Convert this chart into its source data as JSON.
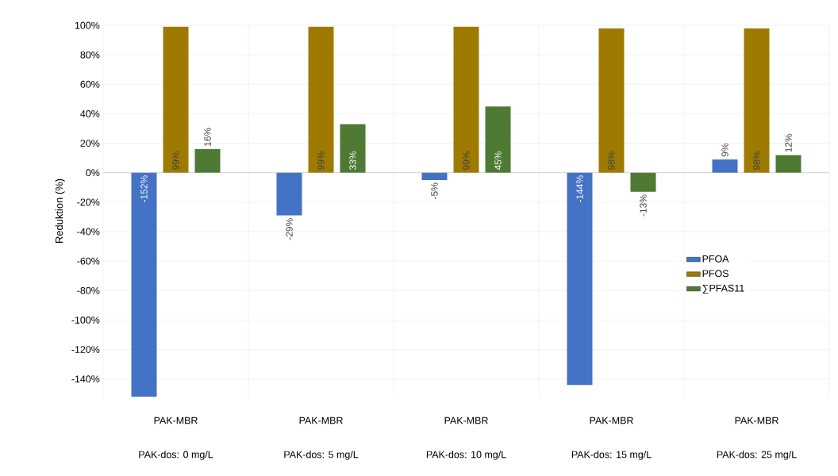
{
  "chart_data": {
    "type": "bar",
    "ylabel": "Reduktion (%)",
    "categories": [
      "PAK-dos: 0 mg/L",
      "PAK-dos: 5 mg/L",
      "PAK-dos: 10 mg/L",
      "PAK-dos: 15 mg/L",
      "PAK-dos: 25 mg/L"
    ],
    "annotations": [
      "PAK-MBR",
      "PAK-MBR",
      "PAK-MBR",
      "PAK-MBR",
      "PAK-MBR"
    ],
    "series": [
      {
        "name": "PFOA",
        "color": "#4472c4",
        "values": [
          -152,
          -29,
          -5,
          -144,
          9
        ],
        "value_labels": [
          "-152%",
          "-29%",
          "-5%",
          "-144%",
          "9%"
        ]
      },
      {
        "name": "PFOS",
        "color": "#9e7b00",
        "values": [
          99,
          99,
          99,
          98,
          98
        ],
        "value_labels": [
          "99%",
          "99%",
          "99%",
          "98%",
          "98%"
        ]
      },
      {
        "name": "∑PFAS11",
        "color": "#4e7a34",
        "values": [
          16,
          33,
          45,
          -13,
          12
        ],
        "value_labels": [
          "16%",
          "33%",
          "45%",
          "-13%",
          "12%"
        ]
      }
    ],
    "ylim": [
      -152,
      100
    ],
    "yticks": [
      {
        "value": -140,
        "label": "-140%"
      },
      {
        "value": -120,
        "label": "-120%"
      },
      {
        "value": -100,
        "label": "-100%"
      },
      {
        "value": -80,
        "label": "-80%"
      },
      {
        "value": -60,
        "label": "-60%"
      },
      {
        "value": -40,
        "label": "-40%"
      },
      {
        "value": -20,
        "label": "-20%"
      },
      {
        "value": 0,
        "label": "0%"
      },
      {
        "value": 20,
        "label": "20%"
      },
      {
        "value": 40,
        "label": "40%"
      },
      {
        "value": 60,
        "label": "60%"
      },
      {
        "value": 80,
        "label": "80%"
      },
      {
        "value": 100,
        "label": "100%"
      }
    ],
    "grid": true,
    "legend": "right"
  }
}
